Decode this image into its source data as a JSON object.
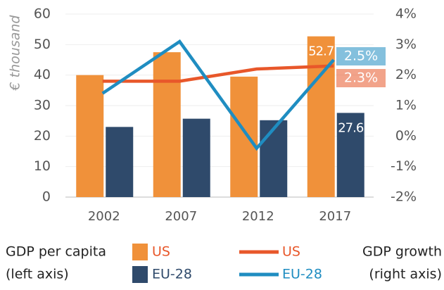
{
  "chart_data": {
    "type": "bar",
    "y_label": "€ thousand",
    "categories": [
      "2002",
      "2007",
      "2012",
      "2017"
    ],
    "series": [
      {
        "name": "US",
        "type": "bar",
        "color": "#f0913a",
        "values": [
          40,
          47.5,
          39.5,
          52.7
        ],
        "value_labels": [
          null,
          null,
          null,
          "52.7"
        ]
      },
      {
        "name": "EU-28",
        "type": "bar",
        "color": "#2f4a6b",
        "values": [
          23,
          25.7,
          25.2,
          27.6
        ],
        "value_labels": [
          null,
          null,
          null,
          "27.6"
        ]
      },
      {
        "name": "US",
        "type": "line",
        "axis": "y2",
        "color": "#e8572a",
        "values": [
          1.8,
          1.8,
          2.2,
          2.3
        ],
        "value_labels": [
          null,
          null,
          null,
          "2.3%"
        ]
      },
      {
        "name": "EU-28",
        "type": "line",
        "axis": "y2",
        "color": "#1f8dc1",
        "values": [
          1.4,
          3.1,
          -0.4,
          2.5
        ],
        "value_labels": [
          null,
          null,
          null,
          "2.5%"
        ]
      }
    ],
    "ylim": [
      0,
      60
    ],
    "yticks": [
      0,
      10,
      20,
      30,
      40,
      50,
      60
    ],
    "y2lim": [
      -2,
      4
    ],
    "y2ticks": [
      {
        "value": -2,
        "label": "-2%"
      },
      {
        "value": -1,
        "label": "-1%"
      },
      {
        "value": 0,
        "label": "0%"
      },
      {
        "value": 1,
        "label": "1%"
      },
      {
        "value": 2,
        "label": "2%"
      },
      {
        "value": 3,
        "label": "3%"
      },
      {
        "value": 4,
        "label": "4%"
      }
    ],
    "grid": true,
    "legend_titles": [
      [
        "GDP per capita",
        "(left axis)"
      ],
      [
        "GDP growth",
        "(right axis)"
      ]
    ]
  }
}
